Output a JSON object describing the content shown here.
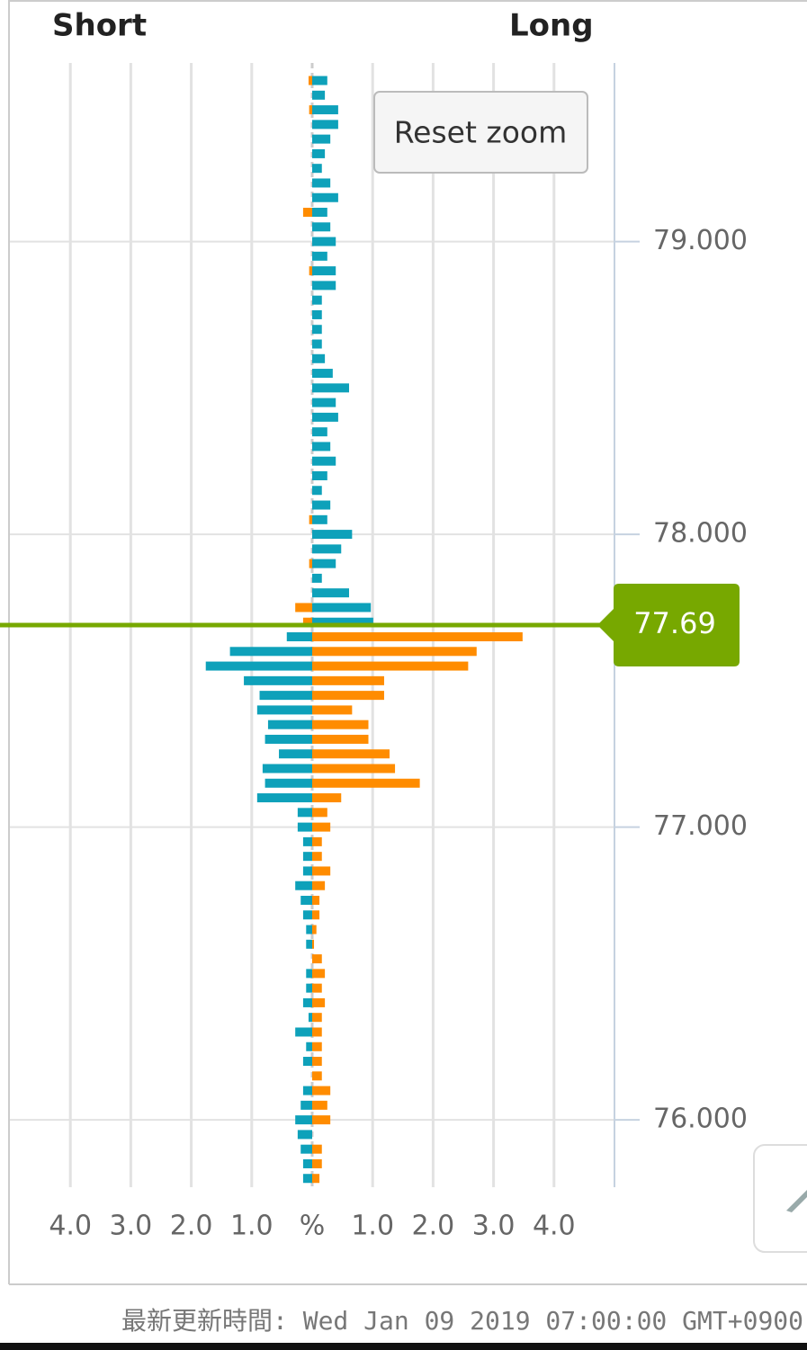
{
  "chart_data": {
    "type": "butterfly-bar",
    "left_label": "Short",
    "right_label": "Long",
    "y": [
      79.55,
      79.5,
      79.45,
      79.4,
      79.35,
      79.3,
      79.25,
      79.2,
      79.15,
      79.1,
      79.05,
      79,
      78.95,
      78.9,
      78.85,
      78.8,
      78.75,
      78.7,
      78.65,
      78.6,
      78.55,
      78.5,
      78.45,
      78.4,
      78.35,
      78.3,
      78.25,
      78.2,
      78.15,
      78.1,
      78.05,
      78,
      77.95,
      77.9,
      77.85,
      77.8,
      77.75,
      77.7,
      77.65,
      77.6,
      77.55,
      77.5,
      77.45,
      77.4,
      77.35,
      77.3,
      77.25,
      77.2,
      77.15,
      77.1,
      77.05,
      77,
      76.95,
      76.9,
      76.85,
      76.8,
      76.75,
      76.7,
      76.65,
      76.6,
      76.55,
      76.5,
      76.45,
      76.4,
      76.35,
      76.3,
      76.25,
      76.2,
      76.15,
      76.1,
      76.05,
      76,
      75.95,
      75.9,
      75.85,
      75.8
    ],
    "series": [
      {
        "name": "Short",
        "side": "left",
        "color_above": "#ff8c00",
        "color_below": "#0ea1ba",
        "values": [
          0.06,
          0,
          0.05,
          0,
          0,
          0,
          0,
          0,
          0,
          0.15,
          0,
          0,
          0,
          0.05,
          0,
          0,
          0,
          0,
          0,
          0,
          0,
          0,
          0,
          0,
          0,
          0,
          0,
          0,
          0,
          0,
          0.05,
          0,
          0,
          0.05,
          0,
          0,
          0.28,
          0.15,
          0.42,
          1.36,
          1.76,
          1.13,
          0.87,
          0.91,
          0.73,
          0.78,
          0.55,
          0.82,
          0.78,
          0.91,
          0.24,
          0.24,
          0.15,
          0.15,
          0.15,
          0.28,
          0.19,
          0.15,
          0.1,
          0.1,
          0,
          0.1,
          0.1,
          0.15,
          0.06,
          0.28,
          0.1,
          0.15,
          0,
          0.15,
          0.19,
          0.28,
          0.24,
          0.19,
          0.15,
          0.15
        ]
      },
      {
        "name": "Long",
        "side": "right",
        "color_above": "#0ea1ba",
        "color_below": "#ff8c00",
        "values": [
          0.25,
          0.21,
          0.43,
          0.43,
          0.3,
          0.21,
          0.16,
          0.3,
          0.43,
          0.25,
          0.3,
          0.39,
          0.25,
          0.39,
          0.39,
          0.16,
          0.16,
          0.16,
          0.16,
          0.21,
          0.34,
          0.61,
          0.39,
          0.43,
          0.25,
          0.3,
          0.39,
          0.25,
          0.16,
          0.3,
          0.25,
          0.66,
          0.48,
          0.39,
          0.16,
          0.61,
          0.97,
          1.01,
          3.48,
          2.72,
          2.58,
          1.19,
          1.19,
          0.66,
          0.93,
          0.93,
          1.28,
          1.37,
          1.78,
          0.48,
          0.25,
          0.3,
          0.16,
          0.16,
          0.3,
          0.21,
          0.12,
          0.12,
          0.07,
          0.03,
          0.16,
          0.21,
          0.16,
          0.21,
          0.16,
          0.16,
          0.16,
          0.16,
          0.16,
          0.3,
          0.25,
          0.3,
          0,
          0.16,
          0.16,
          0.12
        ]
      }
    ],
    "current_price": 77.69,
    "current_price_color": "#77a800",
    "xlim": [
      -5,
      5
    ],
    "xticks": [
      {
        "value": -4,
        "label": "4.0"
      },
      {
        "value": -3,
        "label": "3.0"
      },
      {
        "value": -2,
        "label": "2.0"
      },
      {
        "value": -1,
        "label": "1.0"
      },
      {
        "value": 0,
        "label": "%"
      },
      {
        "value": 1,
        "label": "1.0"
      },
      {
        "value": 2,
        "label": "2.0"
      },
      {
        "value": 3,
        "label": "3.0"
      },
      {
        "value": 4,
        "label": "4.0"
      }
    ],
    "ylim": [
      75.77,
      79.61
    ],
    "yticks": [
      {
        "value": 76,
        "label": "76.000"
      },
      {
        "value": 77,
        "label": "77.000"
      },
      {
        "value": 78,
        "label": "78.000"
      },
      {
        "value": 79,
        "label": "79.000"
      }
    ],
    "grid": true,
    "reset_button": "Reset zoom",
    "footer": "最新更新時間: Wed Jan 09 2019 07:00:00 GMT+0900"
  }
}
